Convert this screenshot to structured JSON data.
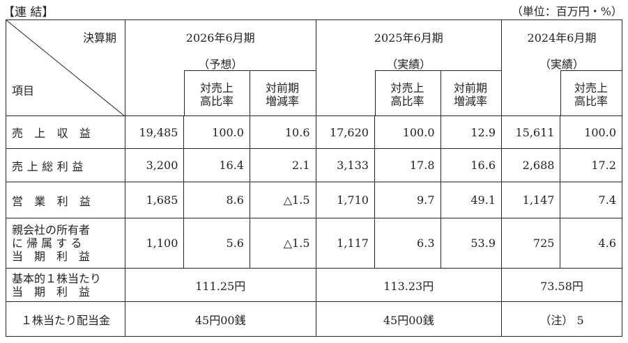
{
  "title": "【連 結】",
  "unit": "（単位：百万円・%）",
  "header": {
    "period_label": "決算期",
    "item_label": "項目",
    "periods": [
      {
        "name": "2026年6月期",
        "type": "（予想）"
      },
      {
        "name": "2025年6月期",
        "type": "（実績）"
      },
      {
        "name": "2024年6月期",
        "type": "（実績）"
      }
    ],
    "sub_ratio_line1": "対売上",
    "sub_ratio_line2": "高比率",
    "sub_growth_line1": "対前期",
    "sub_growth_line2": "増減率"
  },
  "rows": [
    {
      "label": "売 上 収 益",
      "v": [
        "19,485",
        "100.0",
        "10.6",
        "17,620",
        "100.0",
        "12.9",
        "15,611",
        "100.0"
      ]
    },
    {
      "label": "売上総利益",
      "v": [
        "3,200",
        "16.4",
        "2.1",
        "3,133",
        "17.8",
        "16.6",
        "2,688",
        "17.2"
      ]
    },
    {
      "label": "営 業 利 益",
      "v": [
        "1,685",
        "8.6",
        "△1.5",
        "1,710",
        "9.7",
        "49.1",
        "1,147",
        "7.4"
      ]
    },
    {
      "label_lines": [
        "親会社の所有者",
        "に 帰 属 す る",
        "当　期　利　益"
      ],
      "v": [
        "1,100",
        "5.6",
        "△1.5",
        "1,117",
        "6.3",
        "53.9",
        "725",
        "4.6"
      ]
    }
  ],
  "eps": {
    "label_lines": [
      "基本的１株当たり",
      "当　期　利　益"
    ],
    "values": [
      "111.25円",
      "113.23円",
      "73.58円"
    ]
  },
  "dividend": {
    "label": "１株当たり配当金",
    "values": [
      "45円00銭",
      "45円00銭",
      "（注） 5"
    ]
  }
}
